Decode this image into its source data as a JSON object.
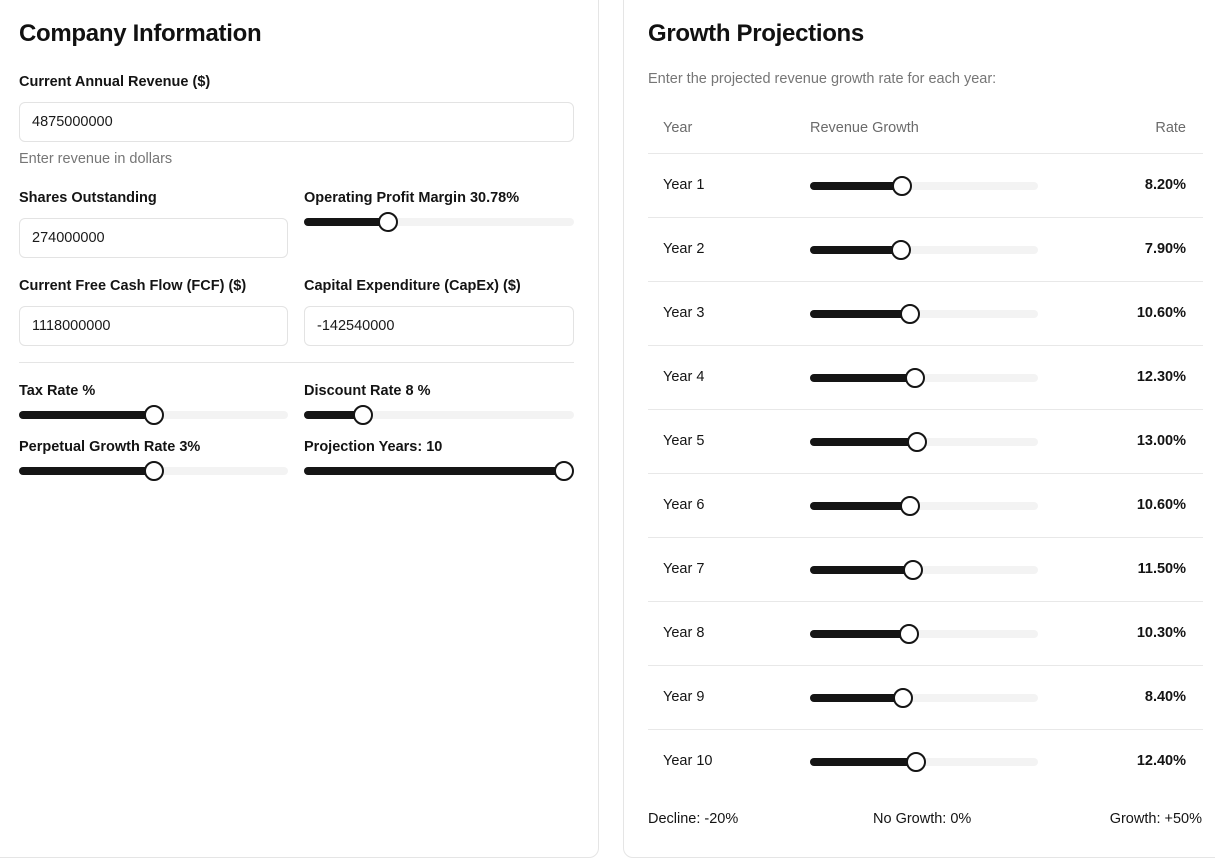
{
  "company": {
    "title": "Company Information",
    "revenue": {
      "label": "Current Annual Revenue ($)",
      "value": "4875000000",
      "hint": "Enter revenue in dollars"
    },
    "shares": {
      "label": "Shares Outstanding",
      "value": "274000000"
    },
    "operating_margin": {
      "label": "Operating Profit Margin 30.78%",
      "fraction": 0.31
    },
    "fcf": {
      "label": "Current Free Cash Flow (FCF) ($)",
      "value": "1118000000"
    },
    "capex": {
      "label": "Capital Expenditure (CapEx) ($)",
      "value": "-142540000"
    },
    "tax_rate": {
      "label": "Tax Rate %",
      "fraction": 0.5
    },
    "discount_rate": {
      "label": "Discount Rate 8 %",
      "fraction": 0.22
    },
    "perpetual_growth": {
      "label": "Perpetual Growth Rate 3%",
      "fraction": 0.5
    },
    "projection_years": {
      "label": "Projection Years: 10",
      "fraction": 1.0
    }
  },
  "growth": {
    "title": "Growth Projections",
    "subtitle": "Enter the projected revenue growth rate for each year:",
    "headers": {
      "year": "Year",
      "growth": "Revenue Growth",
      "rate": "Rate"
    },
    "slider_min": -20,
    "slider_max": 50,
    "rows": [
      {
        "year": "Year 1",
        "value": 8.2,
        "rate": "8.20%"
      },
      {
        "year": "Year 2",
        "value": 7.9,
        "rate": "7.90%"
      },
      {
        "year": "Year 3",
        "value": 10.6,
        "rate": "10.60%"
      },
      {
        "year": "Year 4",
        "value": 12.3,
        "rate": "12.30%"
      },
      {
        "year": "Year 5",
        "value": 13.0,
        "rate": "13.00%"
      },
      {
        "year": "Year 6",
        "value": 10.6,
        "rate": "10.60%"
      },
      {
        "year": "Year 7",
        "value": 11.5,
        "rate": "11.50%"
      },
      {
        "year": "Year 8",
        "value": 10.3,
        "rate": "10.30%"
      },
      {
        "year": "Year 9",
        "value": 8.4,
        "rate": "8.40%"
      },
      {
        "year": "Year 10",
        "value": 12.4,
        "rate": "12.40%"
      }
    ],
    "legend": {
      "decline": "Decline: -20%",
      "none": "No Growth: 0%",
      "growth": "Growth: +50%"
    }
  }
}
